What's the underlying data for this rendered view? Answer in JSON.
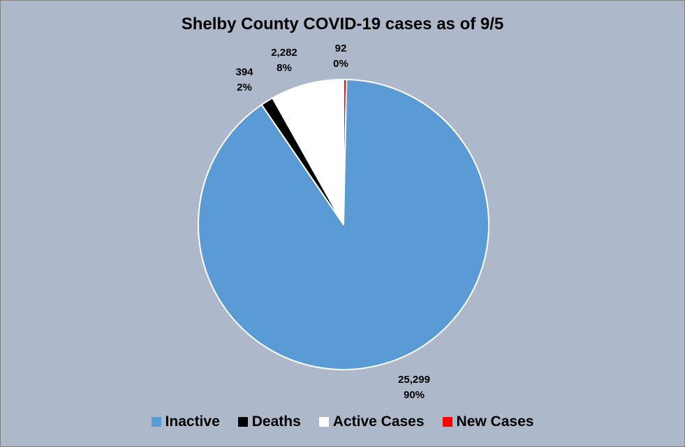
{
  "chart_data": {
    "type": "pie",
    "title": "Shelby County COVID-19 cases as of 9/5",
    "categories": [
      "Inactive",
      "Deaths",
      "Active Cases",
      "New Cases"
    ],
    "values": [
      25299,
      394,
      2282,
      92
    ],
    "value_labels": [
      "25,299",
      "394",
      "2,282",
      "92"
    ],
    "percent_labels": [
      "90%",
      "2%",
      "8%",
      "0%"
    ],
    "colors": [
      "#5b9bd5",
      "#000000",
      "#ffffff",
      "#ff0000"
    ],
    "slice_order": [
      "New Cases",
      "Inactive",
      "Deaths",
      "Active Cases"
    ],
    "start_angle": "12 o'clock",
    "direction": "clockwise",
    "legend_position": "bottom",
    "background_color": "#adb9ca"
  }
}
